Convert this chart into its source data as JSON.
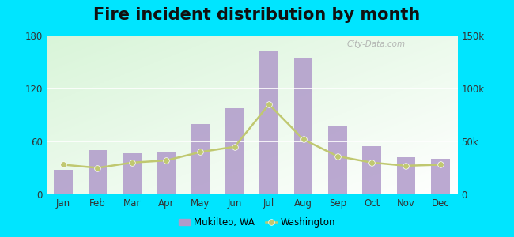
{
  "title": "Fire incident distribution by month",
  "months": [
    "Jan",
    "Feb",
    "Mar",
    "Apr",
    "May",
    "Jun",
    "Jul",
    "Aug",
    "Sep",
    "Oct",
    "Nov",
    "Dec"
  ],
  "mukilteo_values": [
    28,
    50,
    47,
    48,
    80,
    98,
    162,
    155,
    78,
    55,
    42,
    40
  ],
  "washington_values_scaled": [
    28000,
    25000,
    30000,
    32000,
    40000,
    45000,
    85000,
    52000,
    36000,
    30000,
    27000,
    28000
  ],
  "bar_color": "#b09aca",
  "line_color": "#c0c870",
  "line_marker": "o",
  "ylim_left": [
    0,
    180
  ],
  "ylim_right": [
    0,
    150000
  ],
  "yticks_left": [
    0,
    60,
    120,
    180
  ],
  "yticks_right": [
    0,
    50000,
    100000,
    150000
  ],
  "ytick_labels_right": [
    "0",
    "50k",
    "100k",
    "150k"
  ],
  "outer_bg": "#00e5ff",
  "title_fontsize": 15,
  "watermark": "City-Data.com",
  "legend_mukilteo": "Mukilteo, WA",
  "legend_washington": "Washington"
}
